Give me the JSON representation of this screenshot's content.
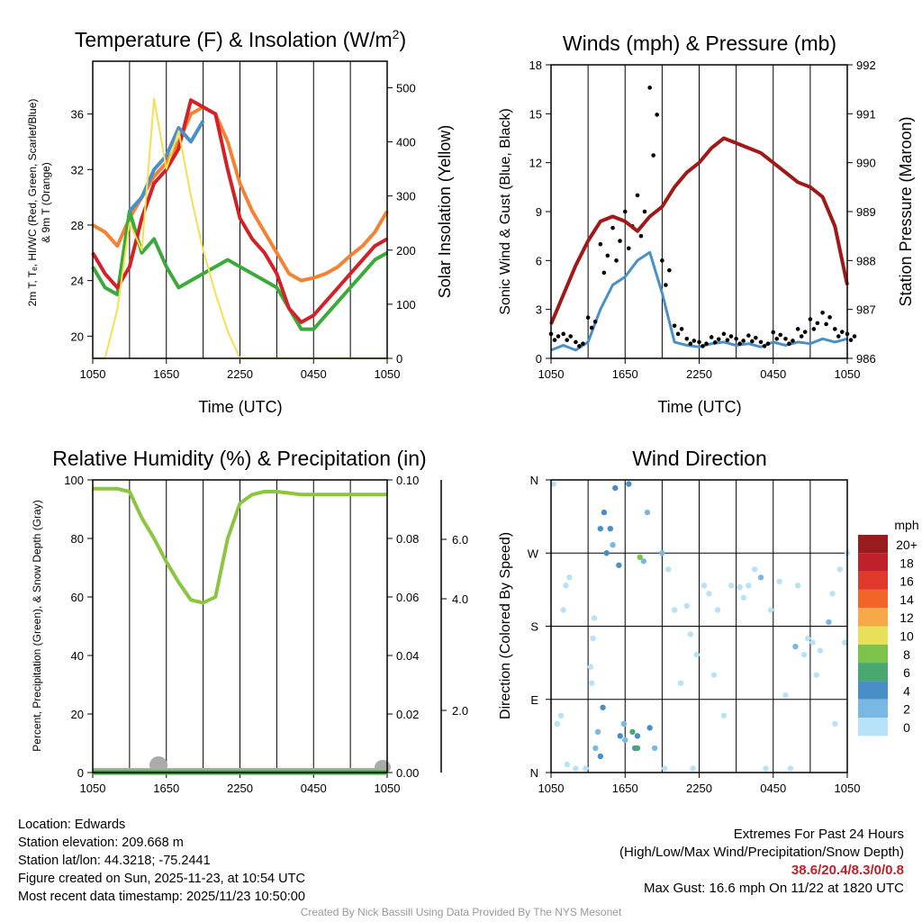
{
  "x_ticks": [
    "1050",
    "1650",
    "2250",
    "0450",
    "1050"
  ],
  "chart_data": [
    {
      "type": "line",
      "title": "Temperature (F) & Insolation (W/m²)",
      "xlabel": "Time (UTC)",
      "ylabel": "2m T, Td, HI/WC (Red, Green, Scarlet/Blue) & 9m T (Orange)",
      "ylabel_line1": "2m T, Tₑ, HI/WC (Red, Green, Scarlet/Blue)",
      "ylabel_line2": "& 9m T (Orange)",
      "y2label": "Solar Insolation (Yellow)",
      "ylim": [
        18.4,
        39.8
      ],
      "y2lim": [
        0,
        549
      ],
      "yticks": [
        20,
        24,
        28,
        32,
        36
      ],
      "y2ticks": [
        0,
        100,
        200,
        300,
        400,
        500
      ],
      "x_hours": [
        0,
        1,
        2,
        3,
        4,
        5,
        6,
        7,
        8,
        9,
        10,
        11,
        12,
        13,
        14,
        15,
        16,
        17,
        18,
        19,
        20,
        21,
        22,
        23,
        24
      ],
      "series": [
        {
          "name": "9m T",
          "color": "#f58232",
          "axis": "left",
          "values": [
            28,
            27.5,
            26.5,
            28.5,
            30,
            31.5,
            32.5,
            34,
            36,
            36.5,
            36,
            34,
            31,
            29,
            27.5,
            26,
            24.5,
            24,
            24.2,
            24.5,
            25,
            25.8,
            26.5,
            27.5,
            29
          ]
        },
        {
          "name": "Td",
          "color": "#3aaa3a",
          "axis": "left",
          "values": [
            25,
            23.5,
            23,
            29,
            26,
            27,
            25,
            23.5,
            24,
            24.5,
            25,
            25.5,
            25,
            24.5,
            24,
            23.5,
            22,
            20.5,
            20.5,
            21.5,
            22.5,
            23.5,
            24.5,
            25.5,
            26
          ]
        },
        {
          "name": "2m T",
          "color": "#d42027",
          "axis": "left",
          "values": [
            26,
            24.5,
            23.5,
            25,
            28.5,
            31,
            32,
            33.5,
            37,
            36.5,
            36,
            32,
            28.5,
            27,
            26,
            24.5,
            22,
            21,
            21.5,
            22.5,
            23.5,
            24.5,
            25.5,
            26.5,
            27
          ]
        },
        {
          "name": "WC",
          "color": "#4a90c8",
          "axis": "left",
          "values": [
            null,
            null,
            null,
            29,
            30,
            32,
            33,
            35,
            34,
            35.5,
            null,
            null,
            null,
            null,
            null,
            null,
            null,
            null,
            null,
            null,
            null,
            null,
            null,
            null,
            null
          ]
        },
        {
          "name": "Solar Insolation",
          "color": "#f5e050",
          "axis": "right",
          "values": [
            0,
            0,
            90,
            250,
            200,
            480,
            350,
            420,
            300,
            200,
            120,
            50,
            0,
            0,
            0,
            0,
            0,
            0,
            0,
            0,
            0,
            0,
            0,
            0,
            0
          ]
        }
      ]
    },
    {
      "type": "line",
      "title": "Winds (mph) & Pressure (mb)",
      "xlabel": "Time (UTC)",
      "ylabel": "Sonic Wind & Gust (Blue, Black)",
      "y2label": "Station Pressure (Maroon)",
      "ylim": [
        0,
        18
      ],
      "y2lim": [
        986,
        992
      ],
      "yticks": [
        0,
        3,
        6,
        9,
        12,
        15,
        18
      ],
      "y2ticks": [
        986,
        987,
        988,
        989,
        990,
        991,
        992
      ],
      "series": [
        {
          "name": "Sonic Wind",
          "color": "#4a90c8",
          "axis": "left",
          "values": [
            0.5,
            0.8,
            0.5,
            1,
            3,
            4.5,
            5,
            6,
            6.5,
            4,
            1,
            0.8,
            0.7,
            0.9,
            1,
            0.8,
            0.9,
            0.7,
            1,
            0.8,
            1,
            0.9,
            1.2,
            1,
            1.2
          ]
        },
        {
          "name": "Gust",
          "color": "#000000",
          "axis": "left",
          "type": "scatter",
          "values": [
            1.5,
            1.5,
            1,
            2.5,
            7,
            8,
            9,
            10,
            16.6,
            6,
            2,
            1.2,
            1,
            1.3,
            1.5,
            1.2,
            1.4,
            1,
            1.6,
            1.2,
            1.8,
            2.4,
            2.8,
            1.8,
            1.5
          ]
        },
        {
          "name": "Station Pressure",
          "color": "#a01818",
          "axis": "right",
          "values": [
            986.7,
            987.3,
            987.9,
            988.4,
            988.8,
            988.9,
            988.8,
            988.6,
            988.9,
            989.1,
            989.5,
            989.8,
            990.0,
            990.3,
            990.5,
            990.4,
            990.3,
            990.2,
            990.0,
            989.8,
            989.6,
            989.5,
            989.3,
            988.7,
            987.5
          ]
        }
      ]
    },
    {
      "type": "line",
      "title": "Relative Humidity (%) & Precipitation (in)",
      "ylabel": "Percent, Precipitation (Green), & Snow Depth (Gray)",
      "ylim": [
        0,
        100
      ],
      "y2lim": [
        0,
        0.1
      ],
      "yticks": [
        0,
        20,
        40,
        60,
        80,
        100
      ],
      "y2ticks": [
        "0.00",
        "0.02",
        "0.04",
        "0.06",
        "0.08",
        "0.10"
      ],
      "y3ticks": [
        "2.0",
        "4.0",
        "6.0"
      ],
      "series": [
        {
          "name": "RH",
          "color": "#8cc540",
          "values": [
            97,
            97,
            97,
            96,
            87,
            80,
            72,
            65,
            59,
            58,
            60,
            80,
            92,
            95,
            96,
            96,
            95.5,
            95,
            95,
            95,
            95,
            95,
            95,
            95,
            95
          ]
        },
        {
          "name": "Precipitation",
          "color": "#3aaa3a",
          "values": [
            0,
            0,
            0,
            0,
            0,
            0,
            0,
            0,
            0,
            0,
            0,
            0,
            0,
            0,
            0,
            0,
            0,
            0,
            0,
            0,
            0,
            0,
            0,
            0,
            0
          ]
        }
      ]
    },
    {
      "type": "scatter",
      "title": "Wind Direction",
      "ylabel": "Direction (Colored By Speed)",
      "yticks": [
        "N",
        "E",
        "S",
        "W",
        "N"
      ],
      "legend_title": "mph",
      "legend": [
        {
          "label": "20+",
          "color": "#981b1e"
        },
        {
          "label": "18",
          "color": "#c0202a"
        },
        {
          "label": "16",
          "color": "#e0392b"
        },
        {
          "label": "14",
          "color": "#f26529"
        },
        {
          "label": "12",
          "color": "#f8a848"
        },
        {
          "label": "10",
          "color": "#e8e05a"
        },
        {
          "label": "8",
          "color": "#7dc24b"
        },
        {
          "label": "6",
          "color": "#48a870"
        },
        {
          "label": "4",
          "color": "#4a8ec8"
        },
        {
          "label": "2",
          "color": "#7ab8e4"
        },
        {
          "label": "0",
          "color": "#b8e2f8"
        }
      ],
      "points": [
        [
          0.2,
          355,
          0
        ],
        [
          0.5,
          60,
          1
        ],
        [
          0.8,
          70,
          0
        ],
        [
          1,
          200,
          1
        ],
        [
          1.2,
          230,
          1
        ],
        [
          1.5,
          240,
          0
        ],
        [
          1.3,
          10,
          0
        ],
        [
          2,
          5,
          0
        ],
        [
          2.8,
          5,
          0
        ],
        [
          3.2,
          130,
          1
        ],
        [
          3.4,
          165,
          1
        ],
        [
          3.5,
          190,
          0
        ],
        [
          3.3,
          110,
          0
        ],
        [
          3.6,
          30,
          3
        ],
        [
          3.8,
          50,
          3
        ],
        [
          4,
          20,
          4
        ],
        [
          4.2,
          80,
          5
        ],
        [
          4,
          300,
          4
        ],
        [
          4.3,
          320,
          4
        ],
        [
          4.5,
          270,
          5
        ],
        [
          4.8,
          300,
          4
        ],
        [
          5.2,
          350,
          5
        ],
        [
          5.5,
          255,
          5
        ],
        [
          5,
          280,
          3
        ],
        [
          5.6,
          45,
          4
        ],
        [
          5.9,
          60,
          3
        ],
        [
          6,
          40,
          2
        ],
        [
          6.3,
          355,
          5
        ],
        [
          6.6,
          50,
          6
        ],
        [
          6.8,
          30,
          5
        ],
        [
          7,
          45,
          4
        ],
        [
          7.2,
          265,
          8
        ],
        [
          7,
          30,
          6
        ],
        [
          7.5,
          260,
          3
        ],
        [
          7.8,
          320,
          2
        ],
        [
          8,
          55,
          4
        ],
        [
          8.4,
          30,
          3
        ],
        [
          9,
          270,
          2
        ],
        [
          9.2,
          5,
          1
        ],
        [
          9.5,
          250,
          1
        ],
        [
          10,
          200,
          1
        ],
        [
          10.5,
          110,
          1
        ],
        [
          11,
          205,
          1
        ],
        [
          11.3,
          170,
          1
        ],
        [
          11.8,
          145,
          1
        ],
        [
          11.5,
          5,
          1
        ],
        [
          12.4,
          230,
          1
        ],
        [
          12.8,
          220,
          0
        ],
        [
          13.2,
          120,
          1
        ],
        [
          13.5,
          200,
          1
        ],
        [
          14,
          70,
          1
        ],
        [
          14.6,
          230,
          1
        ],
        [
          15.3,
          228,
          1
        ],
        [
          15.6,
          215,
          1
        ],
        [
          16,
          230,
          1
        ],
        [
          16.5,
          250,
          1
        ],
        [
          17,
          240,
          2
        ],
        [
          17.4,
          5,
          0
        ],
        [
          17.8,
          200,
          1
        ],
        [
          18.5,
          235,
          1
        ],
        [
          19,
          95,
          1
        ],
        [
          19.4,
          5,
          0
        ],
        [
          19.8,
          155,
          2
        ],
        [
          20,
          230,
          1
        ],
        [
          20.5,
          145,
          1
        ],
        [
          20.8,
          165,
          1
        ],
        [
          21.2,
          160,
          1
        ],
        [
          21.5,
          120,
          1
        ],
        [
          21.8,
          150,
          1
        ],
        [
          22.5,
          185,
          2
        ],
        [
          22.8,
          220,
          1
        ],
        [
          23,
          60,
          1
        ],
        [
          23.4,
          250,
          1
        ],
        [
          23.8,
          160,
          1
        ],
        [
          24,
          270,
          1
        ]
      ]
    }
  ],
  "info": {
    "location": "Location: Edwards",
    "elevation": "Station elevation: 209.668 m",
    "latlon": "Station lat/lon: 44.3218; -75.2441",
    "created": "Figure created on Sun, 2025-11-23, at 10:54 UTC",
    "recent": "Most recent data timestamp: 2025/11/23 10:50:00"
  },
  "extremes": {
    "title": "Extremes For Past 24 Hours",
    "subtitle": "(High/Low/Max Wind/Precipitation/Snow Depth)",
    "values": "38.6/20.4/8.3/0/0.8",
    "max_gust": "Max Gust: 16.6 mph On 11/22 at 1820 UTC",
    "value_color": "#c0202a"
  },
  "credit": "Created By Nick Bassill Using Data Provided By The NYS Mesonet"
}
